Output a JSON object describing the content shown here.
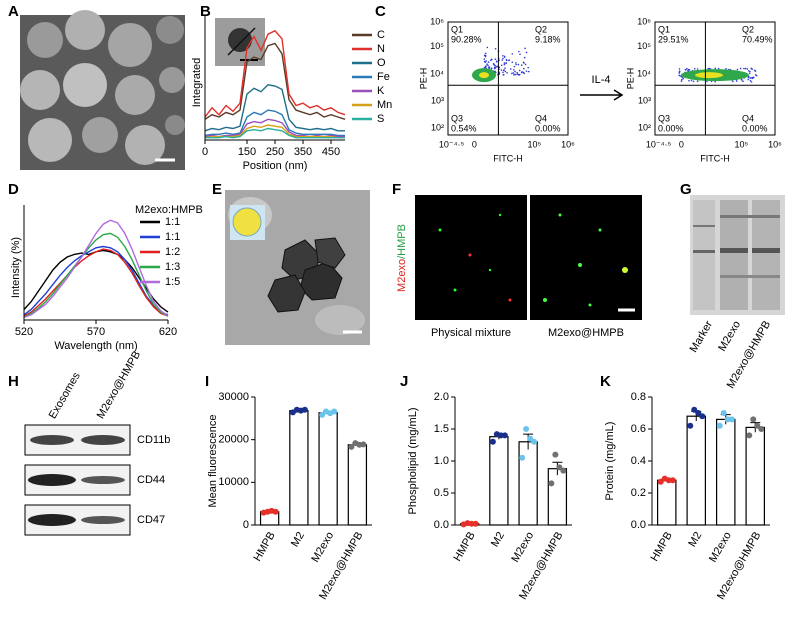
{
  "panel_labels": [
    "A",
    "B",
    "C",
    "D",
    "E",
    "F",
    "G",
    "H",
    "I",
    "J",
    "K"
  ],
  "chart_data": [
    {
      "type": "line",
      "xlabel": "Position (nm)",
      "ylabel": "Integrated",
      "x": [
        0,
        25,
        50,
        75,
        100,
        125,
        150,
        175,
        200,
        225,
        250,
        275,
        300,
        325,
        350,
        375,
        400,
        425,
        450,
        475,
        500
      ],
      "xlim": [
        0,
        500
      ],
      "xticks": [
        0,
        150,
        250,
        350,
        450
      ],
      "ylim": [
        0,
        100
      ],
      "series": [
        {
          "name": "C",
          "color": "#5b3a29",
          "values": [
            18,
            22,
            20,
            24,
            22,
            26,
            68,
            72,
            70,
            82,
            84,
            75,
            35,
            26,
            24,
            22,
            24,
            20,
            22,
            20,
            18
          ]
        },
        {
          "name": "N",
          "color": "#e0302a",
          "values": [
            20,
            28,
            22,
            30,
            25,
            32,
            80,
            90,
            78,
            92,
            95,
            88,
            40,
            30,
            32,
            28,
            30,
            26,
            28,
            24,
            22
          ]
        },
        {
          "name": "O",
          "color": "#1f6e8c",
          "values": [
            8,
            10,
            9,
            11,
            10,
            12,
            40,
            45,
            42,
            48,
            47,
            44,
            18,
            11,
            10,
            9,
            10,
            9,
            10,
            8,
            8
          ]
        },
        {
          "name": "Fe",
          "color": "#2a7ab9",
          "values": [
            4,
            5,
            5,
            6,
            5,
            6,
            20,
            24,
            22,
            26,
            25,
            22,
            9,
            6,
            5,
            5,
            5,
            5,
            5,
            4,
            4
          ]
        },
        {
          "name": "K",
          "color": "#9b4fb8",
          "values": [
            3,
            4,
            3,
            4,
            4,
            5,
            14,
            16,
            15,
            18,
            17,
            15,
            7,
            4,
            4,
            3,
            4,
            3,
            4,
            3,
            3
          ]
        },
        {
          "name": "Mn",
          "color": "#d4a017",
          "values": [
            2,
            3,
            3,
            3,
            3,
            4,
            10,
            12,
            11,
            13,
            12,
            11,
            5,
            3,
            3,
            3,
            3,
            3,
            3,
            2,
            2
          ]
        },
        {
          "name": "S",
          "color": "#2ab0a0",
          "values": [
            2,
            2,
            2,
            3,
            2,
            3,
            8,
            9,
            8,
            10,
            9,
            8,
            4,
            2,
            2,
            2,
            2,
            2,
            2,
            2,
            2
          ]
        }
      ]
    },
    {
      "type": "line",
      "xlabel": "Wavelength (nm)",
      "ylabel": "Intensity (%)",
      "legend_title": "M2exo:HMPB",
      "x": [
        520,
        525,
        530,
        535,
        540,
        545,
        550,
        555,
        560,
        565,
        570,
        575,
        580,
        585,
        590,
        595,
        600,
        605,
        610,
        615,
        620
      ],
      "xlim": [
        520,
        620
      ],
      "xticks": [
        520,
        570,
        620
      ],
      "ylim": [
        0,
        80
      ],
      "series": [
        {
          "name": "1:1",
          "color": "#000000",
          "values": [
            8,
            14,
            22,
            30,
            38,
            44,
            48,
            50,
            51,
            50,
            52,
            53,
            52,
            50,
            46,
            40,
            32,
            24,
            16,
            10,
            6
          ]
        },
        {
          "name": "1:1",
          "color": "#1f3fd6",
          "values": [
            4,
            8,
            14,
            20,
            27,
            34,
            40,
            45,
            49,
            52,
            55,
            56,
            55,
            52,
            46,
            38,
            28,
            18,
            11,
            6,
            4
          ]
        },
        {
          "name": "1:2",
          "color": "#e02020",
          "values": [
            3,
            6,
            11,
            16,
            22,
            28,
            34,
            40,
            45,
            49,
            52,
            54,
            53,
            50,
            44,
            36,
            26,
            17,
            10,
            5,
            3
          ]
        },
        {
          "name": "1:3",
          "color": "#2aa84a",
          "values": [
            2,
            5,
            9,
            14,
            20,
            27,
            34,
            41,
            48,
            55,
            61,
            65,
            66,
            63,
            56,
            46,
            34,
            22,
            12,
            6,
            3
          ]
        },
        {
          "name": "1:5",
          "color": "#b06ae0",
          "values": [
            2,
            4,
            8,
            12,
            18,
            25,
            32,
            40,
            48,
            57,
            66,
            73,
            76,
            74,
            66,
            54,
            40,
            26,
            14,
            7,
            3
          ]
        }
      ]
    },
    {
      "type": "bar",
      "ylabel": "Mean fluorescence",
      "categories": [
        "HMPB",
        "M2",
        "M2exo",
        "M2exo@HMPB"
      ],
      "values": [
        3100,
        26800,
        26300,
        18800
      ],
      "errors": [
        150,
        300,
        400,
        350
      ],
      "points": [
        [
          2900,
          3100,
          3300,
          3100
        ],
        [
          26400,
          27000,
          26800,
          27000
        ],
        [
          25800,
          26600,
          26200,
          26600
        ],
        [
          18300,
          19200,
          18800,
          18900
        ]
      ],
      "colors": [
        "#e8302a",
        "#1a2f8a",
        "#6cc3ec",
        "#707070"
      ],
      "ylim": [
        0,
        30000
      ],
      "yticks": [
        0,
        10000,
        20000,
        30000
      ]
    },
    {
      "type": "bar",
      "ylabel": "Phospholipid (mg/mL)",
      "categories": [
        "HMPB",
        "M2",
        "M2exo",
        "M2exo@HMPB"
      ],
      "values": [
        0.02,
        1.38,
        1.3,
        0.88
      ],
      "errors": [
        0.01,
        0.04,
        0.12,
        0.1
      ],
      "points": [
        [
          0.01,
          0.03,
          0.02,
          0.02
        ],
        [
          1.3,
          1.42,
          1.4,
          1.4
        ],
        [
          1.05,
          1.5,
          1.35,
          1.3
        ],
        [
          0.65,
          1.1,
          0.9,
          0.85
        ]
      ],
      "colors": [
        "#e8302a",
        "#1a2f8a",
        "#6cc3ec",
        "#707070"
      ],
      "ylim": [
        0,
        2.0
      ],
      "yticks": [
        {
          "value": 0,
          "label": "0.0"
        },
        0.5,
        {
          "value": 1,
          "label": "1.0"
        },
        1.5,
        {
          "value": 2,
          "label": "2.0"
        }
      ]
    },
    {
      "type": "bar",
      "ylabel": "Protein (mg/mL)",
      "categories": [
        "HMPB",
        "M2",
        "M2exo",
        "M2exo@HMPB"
      ],
      "values": [
        0.28,
        0.68,
        0.66,
        0.61
      ],
      "errors": [
        0.01,
        0.03,
        0.03,
        0.03
      ],
      "points": [
        [
          0.27,
          0.29,
          0.28,
          0.28
        ],
        [
          0.62,
          0.72,
          0.7,
          0.68
        ],
        [
          0.62,
          0.7,
          0.66,
          0.66
        ],
        [
          0.56,
          0.66,
          0.62,
          0.6
        ]
      ],
      "colors": [
        "#e8302a",
        "#1a2f8a",
        "#6cc3ec",
        "#707070"
      ],
      "ylim": [
        0,
        0.8
      ],
      "yticks": [
        {
          "value": 0,
          "label": "0.0"
        },
        0.2,
        0.4,
        0.6,
        0.8
      ]
    }
  ],
  "flow": {
    "xlabel": "FITC-H",
    "ylabel": "PE-H",
    "arrow_label": "IL-4",
    "xtick_labels": [
      "10⁻⁴·⁵",
      "0",
      "10⁵",
      "10⁶"
    ],
    "ytick_labels": [
      "10²",
      "10³",
      "10⁴",
      "10⁵",
      "10⁶"
    ],
    "plots": [
      {
        "quadrants": [
          {
            "name": "Q1",
            "percent": "90.28%"
          },
          {
            "name": "Q2",
            "percent": "9.18%"
          },
          {
            "name": "Q3",
            "percent": "0.54%"
          },
          {
            "name": "Q4",
            "percent": "0.00%"
          }
        ]
      },
      {
        "quadrants": [
          {
            "name": "Q1",
            "percent": "29.51%"
          },
          {
            "name": "Q2",
            "percent": "70.49%"
          },
          {
            "name": "Q3",
            "percent": "0.00%"
          },
          {
            "name": "Q4",
            "percent": "0.00%"
          }
        ]
      }
    ]
  },
  "microscopy": {
    "ylabel_parts": [
      "M2exo",
      "/HMPB"
    ],
    "labels": [
      "Physical mixture",
      "M2exo@HMPB"
    ]
  },
  "gel": {
    "lanes": [
      "Marker",
      "M2exo",
      "M2exo@HMPB"
    ]
  },
  "blot": {
    "samples": [
      "Exosomes",
      "M2exo@HMPB"
    ],
    "proteins": [
      "CD11b",
      "CD44",
      "CD47"
    ]
  }
}
